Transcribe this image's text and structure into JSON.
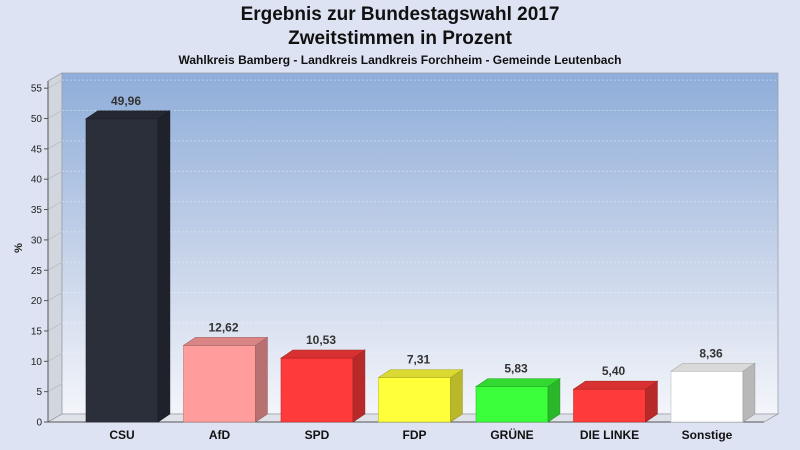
{
  "chart_data": {
    "type": "bar",
    "title": "Ergebnis zur Bundestagswahl 2017",
    "subtitle": "Zweitstimmen in Prozent",
    "caption": "Wahlkreis Bamberg - Landkreis Landkreis Forchheim - Gemeinde Leutenbach",
    "ylabel": "%",
    "xlabel": "",
    "ylim": [
      0,
      57.5
    ],
    "yticks": [
      0,
      5,
      10,
      15,
      20,
      25,
      30,
      35,
      40,
      45,
      50,
      55
    ],
    "grid": true,
    "categories": [
      "CSU",
      "AfD",
      "SPD",
      "FDP",
      "GRÜNE",
      "DIE LINKE",
      "Sonstige"
    ],
    "values": [
      49.96,
      12.62,
      10.53,
      7.31,
      5.83,
      5.4,
      8.36
    ],
    "value_labels": [
      "49,96",
      "12,62",
      "10,53",
      "7,31",
      "5,83",
      "5,40",
      "8,36"
    ],
    "colors": [
      "#2b2f3a",
      "#ff9d9d",
      "#ff3a3a",
      "#ffff3a",
      "#3aff3a",
      "#ff3a3a",
      "#ffffff"
    ]
  }
}
